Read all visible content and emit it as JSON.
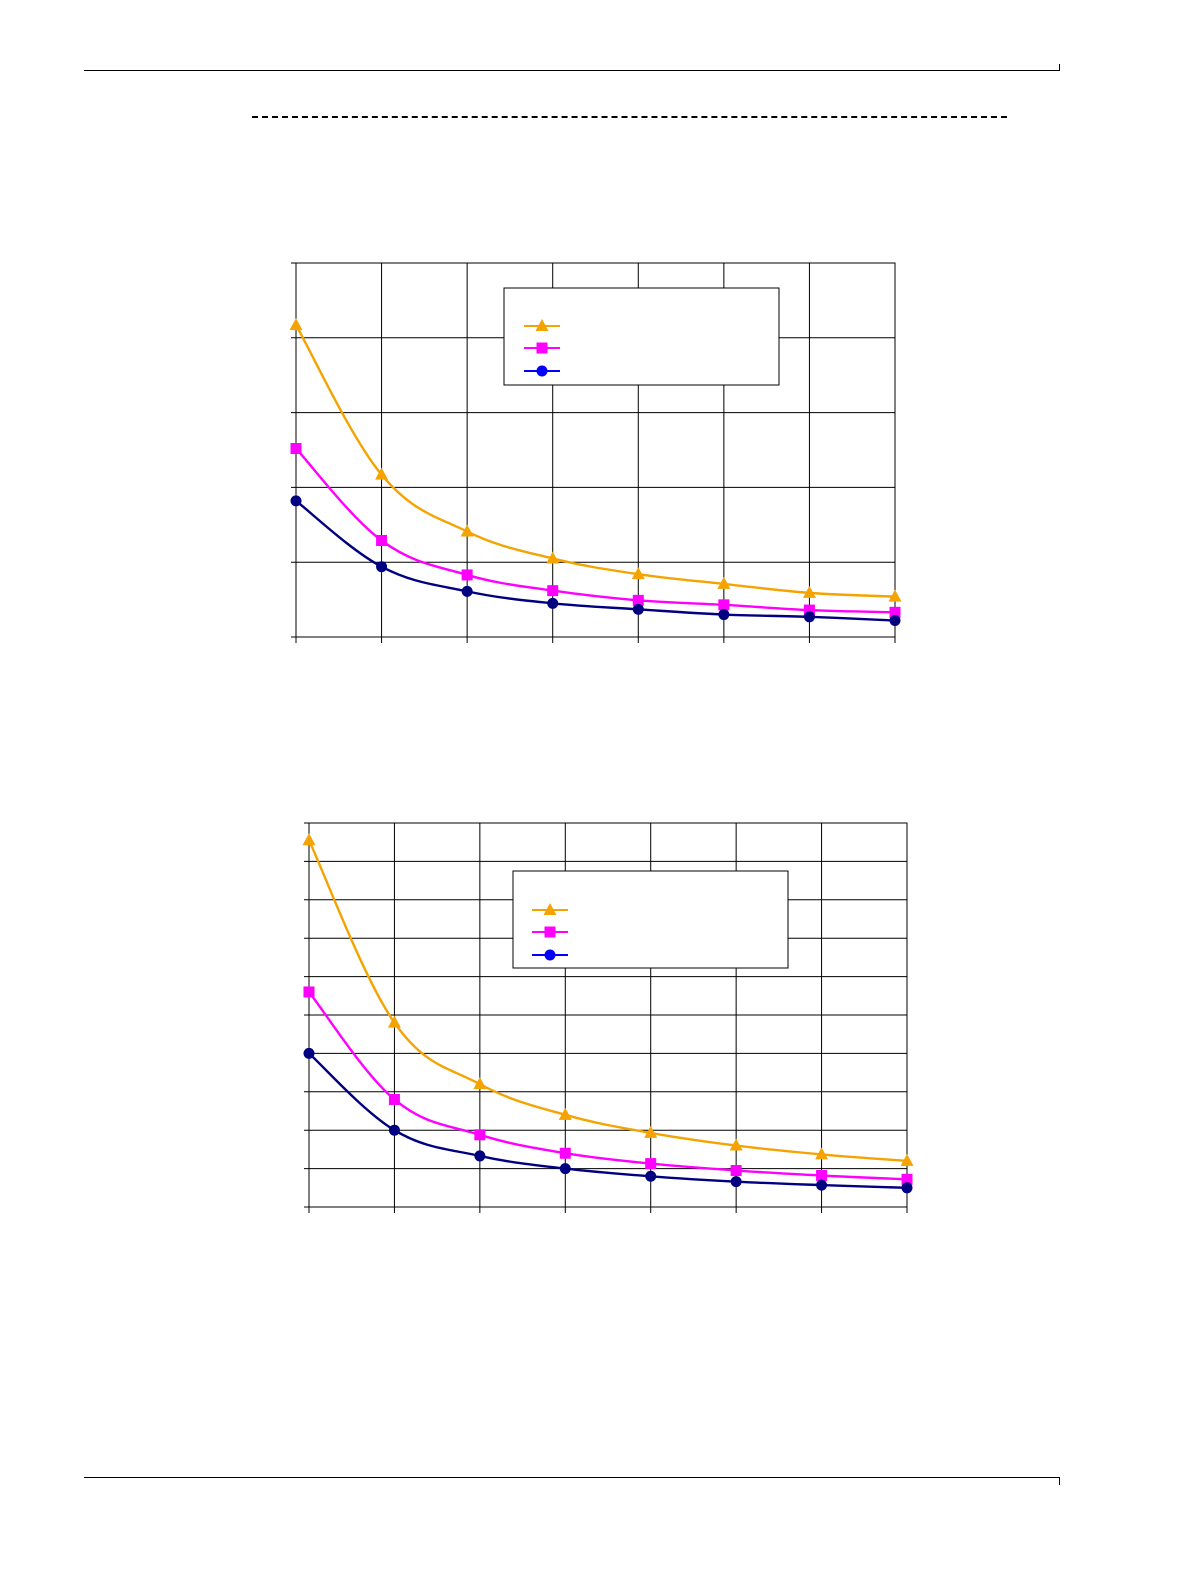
{
  "page": {
    "header_rule": "header-rule",
    "footer_rule": "footer-rule"
  },
  "chart_data": [
    {
      "type": "line",
      "title": "",
      "xlabel": "",
      "ylabel": "",
      "x": [
        0,
        1,
        2,
        3,
        4,
        5,
        6,
        7
      ],
      "xlim": [
        0,
        7
      ],
      "ylim": [
        0,
        5
      ],
      "y_gridlines": 5,
      "grid": true,
      "smooth": true,
      "legend": "top-center",
      "series": [
        {
          "marker": "triangle",
          "color": "#F5A300",
          "values": [
            4.17,
            2.17,
            1.41,
            1.05,
            0.84,
            0.71,
            0.59,
            0.54
          ]
        },
        {
          "marker": "square",
          "color": "#FF00FF",
          "values": [
            2.52,
            1.29,
            0.83,
            0.62,
            0.49,
            0.43,
            0.36,
            0.33
          ]
        },
        {
          "marker": "circle",
          "color": "#000080",
          "legend_color": "#0000FF",
          "values": [
            1.82,
            0.94,
            0.61,
            0.45,
            0.37,
            0.3,
            0.27,
            0.22
          ]
        }
      ]
    },
    {
      "type": "line",
      "title": "",
      "xlabel": "",
      "ylabel": "",
      "x": [
        0,
        1,
        2,
        3,
        4,
        5,
        6,
        7
      ],
      "xlim": [
        0,
        7
      ],
      "ylim": [
        0,
        10
      ],
      "y_gridlines": 10,
      "grid": true,
      "smooth": true,
      "legend": "top-center",
      "series": [
        {
          "marker": "triangle",
          "color": "#F5A300",
          "values": [
            9.55,
            4.8,
            3.2,
            2.4,
            1.93,
            1.6,
            1.37,
            1.2
          ]
        },
        {
          "marker": "square",
          "color": "#FF00FF",
          "values": [
            5.6,
            2.8,
            1.88,
            1.4,
            1.13,
            0.95,
            0.82,
            0.72
          ]
        },
        {
          "marker": "circle",
          "color": "#000080",
          "legend_color": "#0000FF",
          "values": [
            4.0,
            2.0,
            1.33,
            1.0,
            0.8,
            0.66,
            0.57,
            0.5
          ]
        }
      ]
    }
  ]
}
